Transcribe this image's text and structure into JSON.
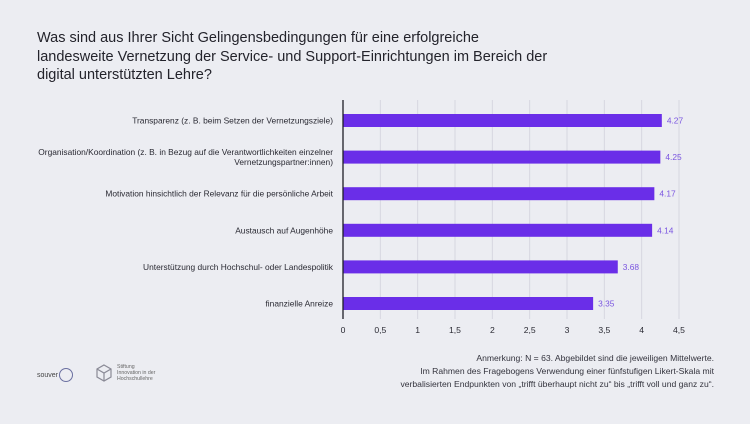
{
  "title_lines": [
    "Was sind aus Ihrer Sicht Gelingensbedingungen für eine erfolgreiche",
    "landesweite Vernetzung der Service- und Support-Einrichtungen im Bereich der",
    "digital unterstützten Lehre?"
  ],
  "chart_data": {
    "type": "bar",
    "orientation": "horizontal",
    "categories": [
      [
        "Transparenz (z. B. beim Setzen der Vernetzungsziele)"
      ],
      [
        "Organisation/Koordination (z. B. in Bezug auf die Verantwortlichkeiten einzelner",
        "Vernetzungspartner:innen)"
      ],
      [
        "Motivation hinsichtlich der Relevanz für die persönliche Arbeit"
      ],
      [
        "Austausch auf Augenhöhe"
      ],
      [
        "Unterstützung durch Hochschul- oder Landespolitik"
      ],
      [
        "finanzielle Anreize"
      ]
    ],
    "values": [
      4.27,
      4.25,
      4.17,
      4.14,
      3.68,
      3.35
    ],
    "value_labels": [
      "4.27",
      "4.25",
      "4.17",
      "4.14",
      "3.68",
      "3.35"
    ],
    "xlim": [
      0,
      4.5
    ],
    "ticks": [
      0,
      0.5,
      1,
      1.5,
      2,
      2.5,
      3,
      3.5,
      4,
      4.5
    ],
    "tick_labels": [
      "0",
      "0,5",
      "1",
      "1,5",
      "2",
      "2,5",
      "3",
      "3,5",
      "4",
      "4,5"
    ],
    "grid": true,
    "color": "#6a2ee8",
    "grid_color": "#d6d7e0",
    "label_color": "#7a55e0"
  },
  "note_lines": [
    "Anmerkung: N = 63. Abgebildet sind die jeweiligen Mittelwerte.",
    "Im Rahmen des Fragebogens Verwendung einer fünfstufigen Likert-Skala mit",
    "verbalisierten Endpunkten von „trifft überhaupt nicht zu“ bis „trifft voll und ganz zu“."
  ],
  "logos": {
    "left": "souver",
    "right_lines": [
      "Stiftung",
      "Innovation in der",
      "Hochschullehre"
    ]
  }
}
